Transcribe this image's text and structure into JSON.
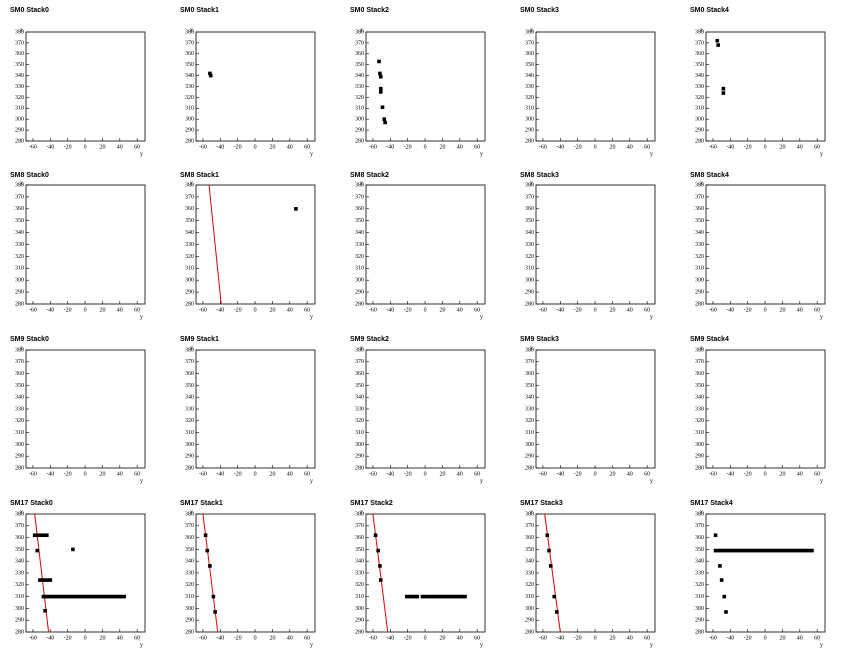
{
  "chart_data": {
    "type": "scatter",
    "xlabel": "y",
    "ylabel": "x",
    "xlim": [
      -68,
      69
    ],
    "ylim": [
      280,
      380
    ],
    "xticks": [
      -60,
      -40,
      -20,
      0,
      20,
      40,
      60
    ],
    "yticks": [
      280,
      290,
      300,
      310,
      320,
      330,
      340,
      350,
      360,
      370,
      380
    ],
    "panels": [
      {
        "title": "SM0 Stack0",
        "series": []
      },
      {
        "title": "SM0 Stack1",
        "series": [
          {
            "type": "scatter",
            "color": "#000000",
            "x": [
              -52,
              -51
            ],
            "values": [
              342,
              340
            ]
          }
        ]
      },
      {
        "title": "SM0 Stack2",
        "series": [
          {
            "type": "scatter",
            "color": "#000000",
            "x": [
              -53,
              -52,
              -51,
              -51,
              -51,
              -49,
              -47,
              -46
            ],
            "values": [
              353,
              342,
              339,
              328,
              325,
              311,
              300,
              297
            ]
          }
        ]
      },
      {
        "title": "SM0 Stack3",
        "series": []
      },
      {
        "title": "SM0 Stack4",
        "series": [
          {
            "type": "scatter",
            "color": "#000000",
            "x": [
              -55,
              -54,
              -48,
              -48
            ],
            "values": [
              372,
              368,
              328,
              324
            ]
          }
        ]
      },
      {
        "title": "SM8 Stack0",
        "series": []
      },
      {
        "title": "SM8 Stack1",
        "series": [
          {
            "type": "line",
            "color": "#dd0000",
            "x": [
              -53,
              -39
            ],
            "values": [
              380,
              280
            ]
          },
          {
            "type": "scatter",
            "color": "#000000",
            "x": [
              47
            ],
            "values": [
              360
            ]
          }
        ]
      },
      {
        "title": "SM8 Stack2",
        "series": []
      },
      {
        "title": "SM8 Stack3",
        "series": []
      },
      {
        "title": "SM8 Stack4",
        "series": []
      },
      {
        "title": "SM9 Stack0",
        "series": []
      },
      {
        "title": "SM9 Stack1",
        "series": []
      },
      {
        "title": "SM9 Stack2",
        "series": []
      },
      {
        "title": "SM9 Stack3",
        "series": []
      },
      {
        "title": "SM9 Stack4",
        "series": []
      },
      {
        "title": "SM17 Stack0",
        "series": [
          {
            "type": "line",
            "color": "#dd0000",
            "x": [
              -58,
              -42
            ],
            "values": [
              380,
              280
            ]
          },
          {
            "type": "scatter",
            "color": "#000000",
            "x": [
              -58,
              -55,
              -52,
              -49,
              -46,
              -44,
              -55,
              -52,
              -49,
              -46,
              -43,
              -40,
              -14,
              -48,
              -45,
              -42,
              -39,
              -36,
              -33,
              -30,
              -27,
              -24,
              -21,
              -18,
              -15,
              -12,
              -9,
              -6,
              -3,
              0,
              3,
              6,
              9,
              12,
              15,
              18,
              21,
              24,
              27,
              30,
              33,
              36,
              39,
              42,
              45,
              -46
            ],
            "values": [
              362,
              362,
              362,
              362,
              362,
              362,
              349,
              324,
              324,
              324,
              324,
              324,
              350,
              310,
              310,
              310,
              310,
              310,
              310,
              310,
              310,
              310,
              310,
              310,
              310,
              310,
              310,
              310,
              310,
              310,
              310,
              310,
              310,
              310,
              310,
              310,
              310,
              310,
              310,
              310,
              310,
              310,
              310,
              310,
              310,
              298
            ]
          }
        ]
      },
      {
        "title": "SM17 Stack1",
        "series": [
          {
            "type": "line",
            "color": "#dd0000",
            "x": [
              -60,
              -43
            ],
            "values": [
              380,
              280
            ]
          },
          {
            "type": "scatter",
            "color": "#000000",
            "x": [
              -57,
              -55,
              -52,
              -48,
              -46
            ],
            "values": [
              362,
              349,
              336,
              310,
              297
            ]
          }
        ]
      },
      {
        "title": "SM17 Stack2",
        "series": [
          {
            "type": "line",
            "color": "#dd0000",
            "x": [
              -60,
              -43
            ],
            "values": [
              380,
              280
            ]
          },
          {
            "type": "scatter",
            "color": "#000000",
            "x": [
              -57,
              -54,
              -52,
              -51,
              -21,
              -18,
              -15,
              -12,
              -9,
              -3,
              0,
              3,
              6,
              10,
              13,
              16,
              19,
              22,
              25,
              28,
              31,
              34,
              37,
              40,
              43,
              46
            ],
            "values": [
              362,
              349,
              336,
              324,
              310,
              310,
              310,
              310,
              310,
              310,
              310,
              310,
              310,
              310,
              310,
              310,
              310,
              310,
              310,
              310,
              310,
              310,
              310,
              310,
              310,
              310
            ]
          }
        ]
      },
      {
        "title": "SM17 Stack3",
        "series": [
          {
            "type": "line",
            "color": "#dd0000",
            "x": [
              -58,
              -40
            ],
            "values": [
              380,
              280
            ]
          },
          {
            "type": "scatter",
            "color": "#000000",
            "x": [
              -55,
              -53,
              -51,
              -47,
              -44
            ],
            "values": [
              362,
              349,
              336,
              310,
              297
            ]
          }
        ]
      },
      {
        "title": "SM17 Stack4",
        "series": [
          {
            "type": "scatter",
            "color": "#000000",
            "x": [
              -57,
              -57,
              -54,
              -51,
              -48,
              -45,
              -42,
              -39,
              -36,
              -33,
              -30,
              -27,
              -24,
              -21,
              -18,
              -15,
              -12,
              -9,
              -6,
              -3,
              0,
              3,
              6,
              9,
              12,
              15,
              18,
              21,
              24,
              27,
              30,
              33,
              36,
              39,
              42,
              45,
              48,
              51,
              54,
              -52,
              -50,
              -47,
              -45
            ],
            "values": [
              362,
              349,
              349,
              349,
              349,
              349,
              349,
              349,
              349,
              349,
              349,
              349,
              349,
              349,
              349,
              349,
              349,
              349,
              349,
              349,
              349,
              349,
              349,
              349,
              349,
              349,
              349,
              349,
              349,
              349,
              349,
              349,
              349,
              349,
              349,
              349,
              349,
              349,
              349,
              336,
              324,
              310,
              297
            ]
          }
        ]
      }
    ]
  }
}
